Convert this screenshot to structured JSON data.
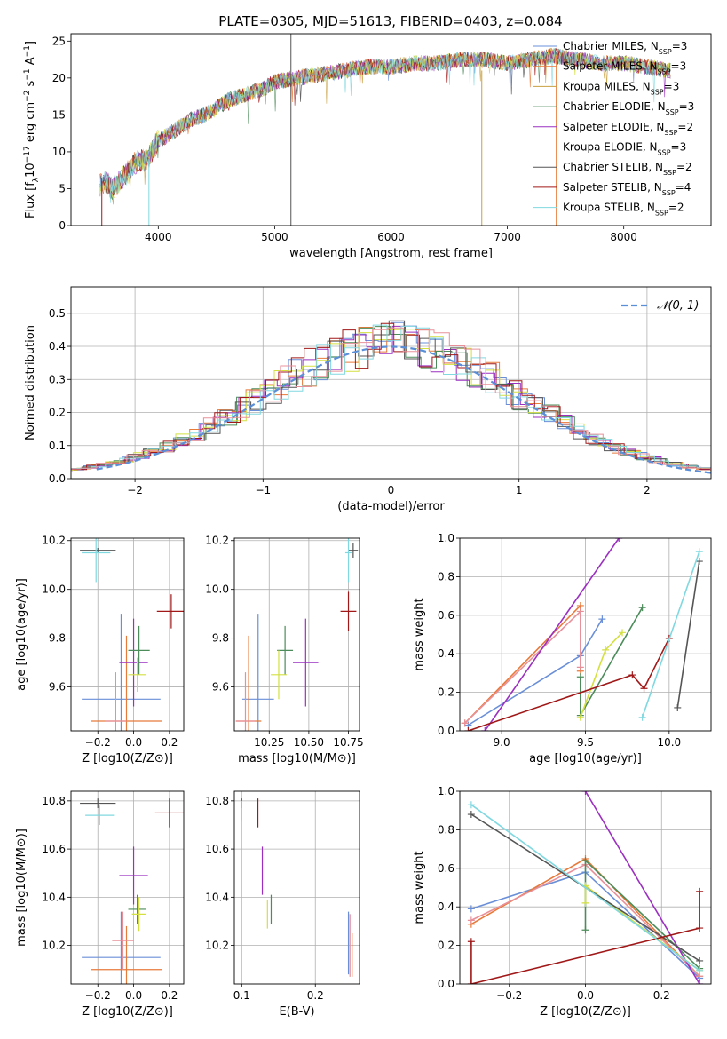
{
  "figure": {
    "title": "PLATE=0305, MJD=51613, FIBERID=0403, z=0.084"
  },
  "legend_entries": [
    {
      "label": "Chabrier MILES, N",
      "sub": "SSP",
      "suffix": "=3",
      "color": "#6a8fd8"
    },
    {
      "label": "Salpeter MILES, N",
      "sub": "SSP",
      "suffix": "=3",
      "color": "#e87a3a"
    },
    {
      "label": "Kroupa MILES, N",
      "sub": "SSP",
      "suffix": "=3",
      "color": "#c8a040"
    },
    {
      "label": "Chabrier ELODIE, N",
      "sub": "SSP",
      "suffix": "=3",
      "color": "#4c8c5a"
    },
    {
      "label": "Salpeter ELODIE, N",
      "sub": "SSP",
      "suffix": "=2",
      "color": "#9b30c0"
    },
    {
      "label": "Kroupa ELODIE, N",
      "sub": "SSP",
      "suffix": "=3",
      "color": "#d4e040"
    },
    {
      "label": "Chabrier STELIB, N",
      "sub": "SSP",
      "suffix": "=2",
      "color": "#555555"
    },
    {
      "label": "Salpeter STELIB, N",
      "sub": "SSP",
      "suffix": "=4",
      "color": "#a01818"
    },
    {
      "label": "Kroupa STELIB, N",
      "sub": "SSP",
      "suffix": "=2",
      "color": "#80d8e0"
    }
  ],
  "chart_data": [
    {
      "id": "spectrum",
      "type": "line",
      "title": "PLATE=0305, MJD=51613, FIBERID=0403, z=0.084",
      "xlabel": "wavelength [Angstrom, rest frame]",
      "ylabel": "Flux [f_λ 10^-17 erg cm^-2 s^-1 A^-1]",
      "xlim": [
        3250,
        8750
      ],
      "ylim": [
        0,
        26
      ],
      "xticks": [
        "4000",
        "5000",
        "6000",
        "7000",
        "8000"
      ],
      "yticks": [
        "0",
        "5",
        "10",
        "15",
        "20",
        "25"
      ],
      "x": [
        3500,
        3550,
        3600,
        3700,
        3800,
        3900,
        4000,
        4100,
        4200,
        4300,
        4400,
        4500,
        4600,
        4700,
        4800,
        4900,
        5000,
        5200,
        5400,
        5600,
        5800,
        6000,
        6200,
        6400,
        6600,
        6800,
        7000,
        7200,
        7400,
        7600,
        7800,
        8000,
        8200,
        8400
      ],
      "y": [
        5.5,
        6.0,
        5.0,
        6.5,
        8.5,
        9.0,
        11.5,
        12.5,
        13.5,
        14.5,
        15.0,
        16.0,
        17.0,
        17.5,
        18.0,
        18.5,
        19.5,
        20.0,
        20.5,
        21.0,
        21.5,
        21.5,
        22.0,
        22.0,
        22.5,
        22.5,
        22.0,
        22.5,
        23.0,
        22.5,
        22.0,
        22.0,
        21.5,
        21.0
      ],
      "legend": "upper right",
      "grid": false
    },
    {
      "id": "residuals",
      "type": "histogram",
      "xlabel": "(data-model)/error",
      "ylabel": "Normed distribution",
      "xlim": [
        -2.5,
        2.5
      ],
      "ylim": [
        0,
        0.58
      ],
      "xticks": [
        "−2",
        "−1",
        "0",
        "1",
        "2"
      ],
      "yticks": [
        "0.0",
        "0.1",
        "0.2",
        "0.3",
        "0.4",
        "0.5"
      ],
      "reference_label": "𝒩(0, 1)",
      "grid": true,
      "legend": "upper right"
    },
    {
      "id": "age-vs-Z",
      "type": "scatter",
      "xlabel": "Z [log10(Z/Z⊙)]",
      "ylabel": "age [log10(age/yr)]",
      "xlim": [
        -0.35,
        0.28
      ],
      "ylim": [
        9.42,
        10.21
      ],
      "xticks": [
        "−0.2",
        "0.0",
        "0.2"
      ],
      "yticks": [
        "9.6",
        "9.8",
        "10.0",
        "10.2"
      ],
      "grid": true
    },
    {
      "id": "age-vs-mass",
      "type": "scatter",
      "xlabel": "mass [log10(M/M⊙)]",
      "ylabel": "",
      "xlim": [
        10.03,
        10.82
      ],
      "ylim": [
        9.42,
        10.21
      ],
      "xticks": [
        "10.25",
        "10.50",
        "10.75"
      ],
      "yticks": [
        "9.6",
        "9.8",
        "10.0",
        "10.2"
      ],
      "grid": true
    },
    {
      "id": "weight-vs-age",
      "type": "line",
      "xlabel": "age [log10(age/yr)]",
      "ylabel": "mass weight",
      "xlim": [
        8.75,
        10.25
      ],
      "ylim": [
        0,
        1
      ],
      "xticks": [
        "9.0",
        "9.5",
        "10.0"
      ],
      "yticks": [
        "0.0",
        "0.2",
        "0.4",
        "0.6",
        "0.8",
        "1.0"
      ],
      "grid": true,
      "series": [
        {
          "color": "#6a8fd8",
          "x": [
            8.8,
            9.47,
            9.6
          ],
          "y": [
            0.03,
            0.39,
            0.58
          ]
        },
        {
          "color": "#e87a3a",
          "x": [
            8.78,
            9.47,
            9.47
          ],
          "y": [
            0.04,
            0.65,
            0.31
          ]
        },
        {
          "color": "#e8909a",
          "x": [
            8.78,
            9.47,
            9.47
          ],
          "y": [
            0.04,
            0.62,
            0.33
          ]
        },
        {
          "color": "#4c8c5a",
          "x": [
            9.47,
            9.47,
            9.84
          ],
          "y": [
            0.28,
            0.08,
            0.64
          ]
        },
        {
          "color": "#9b30c0",
          "x": [
            8.9,
            9.7
          ],
          "y": [
            0.0,
            1.0
          ]
        },
        {
          "color": "#d4e040",
          "x": [
            9.47,
            9.62,
            9.72
          ],
          "y": [
            0.07,
            0.42,
            0.51
          ]
        },
        {
          "color": "#555555",
          "x": [
            10.05,
            10.18
          ],
          "y": [
            0.12,
            0.88
          ]
        },
        {
          "color": "#a01818",
          "x": [
            8.8,
            9.78,
            9.85,
            10.0
          ],
          "y": [
            0.0,
            0.29,
            0.22,
            0.48
          ]
        },
        {
          "color": "#80d8e0",
          "x": [
            9.84,
            10.18
          ],
          "y": [
            0.07,
            0.93
          ]
        }
      ]
    },
    {
      "id": "mass-vs-Z",
      "type": "scatter",
      "xlabel": "Z [log10(Z/Z⊙)]",
      "ylabel": "mass [log10(M/M⊙)]",
      "xlim": [
        -0.35,
        0.28
      ],
      "ylim": [
        10.04,
        10.84
      ],
      "xticks": [
        "−0.2",
        "0.0",
        "0.2"
      ],
      "yticks": [
        "10.2",
        "10.4",
        "10.6",
        "10.8"
      ],
      "grid": true
    },
    {
      "id": "mass-vs-EBV",
      "type": "scatter",
      "xlabel": "E(B-V)",
      "ylabel": "",
      "xlim": [
        0.09,
        0.26
      ],
      "ylim": [
        10.04,
        10.84
      ],
      "xticks": [
        "0.1",
        "0.2"
      ],
      "yticks": [
        "10.2",
        "10.4",
        "10.6",
        "10.8"
      ],
      "grid": true
    },
    {
      "id": "weight-vs-Z",
      "type": "line",
      "xlabel": "Z [log10(Z/Z⊙)]",
      "ylabel": "mass weight",
      "xlim": [
        -0.33,
        0.33
      ],
      "ylim": [
        0,
        1
      ],
      "xticks": [
        "−0.2",
        "0.0",
        "0.2"
      ],
      "yticks": [
        "0.0",
        "0.2",
        "0.4",
        "0.6",
        "0.8",
        "1.0"
      ],
      "grid": true,
      "series": [
        {
          "color": "#6a8fd8",
          "x": [
            -0.3,
            0.0,
            0.3
          ],
          "y": [
            0.39,
            0.58,
            0.03
          ]
        },
        {
          "color": "#e87a3a",
          "x": [
            -0.3,
            0.0,
            0.3
          ],
          "y": [
            0.31,
            0.65,
            0.04
          ]
        },
        {
          "color": "#e8909a",
          "x": [
            -0.3,
            0.0,
            0.3
          ],
          "y": [
            0.33,
            0.62,
            0.04
          ]
        },
        {
          "color": "#4c8c5a",
          "x": [
            0.0,
            0.0,
            0.3
          ],
          "y": [
            0.28,
            0.64,
            0.08
          ]
        },
        {
          "color": "#9b30c0",
          "x": [
            0.0,
            0.3
          ],
          "y": [
            1.0,
            0.0
          ]
        },
        {
          "color": "#d4e040",
          "x": [
            0.0,
            0.0,
            0.3
          ],
          "y": [
            0.42,
            0.51,
            0.07
          ]
        },
        {
          "color": "#555555",
          "x": [
            -0.3,
            0.3
          ],
          "y": [
            0.88,
            0.12
          ]
        },
        {
          "color": "#a01818",
          "x": [
            -0.3,
            -0.3,
            0.3,
            0.3
          ],
          "y": [
            0.22,
            0.0,
            0.29,
            0.48
          ]
        },
        {
          "color": "#80d8e0",
          "x": [
            -0.3,
            0.3
          ],
          "y": [
            0.93,
            0.07
          ]
        }
      ]
    }
  ]
}
